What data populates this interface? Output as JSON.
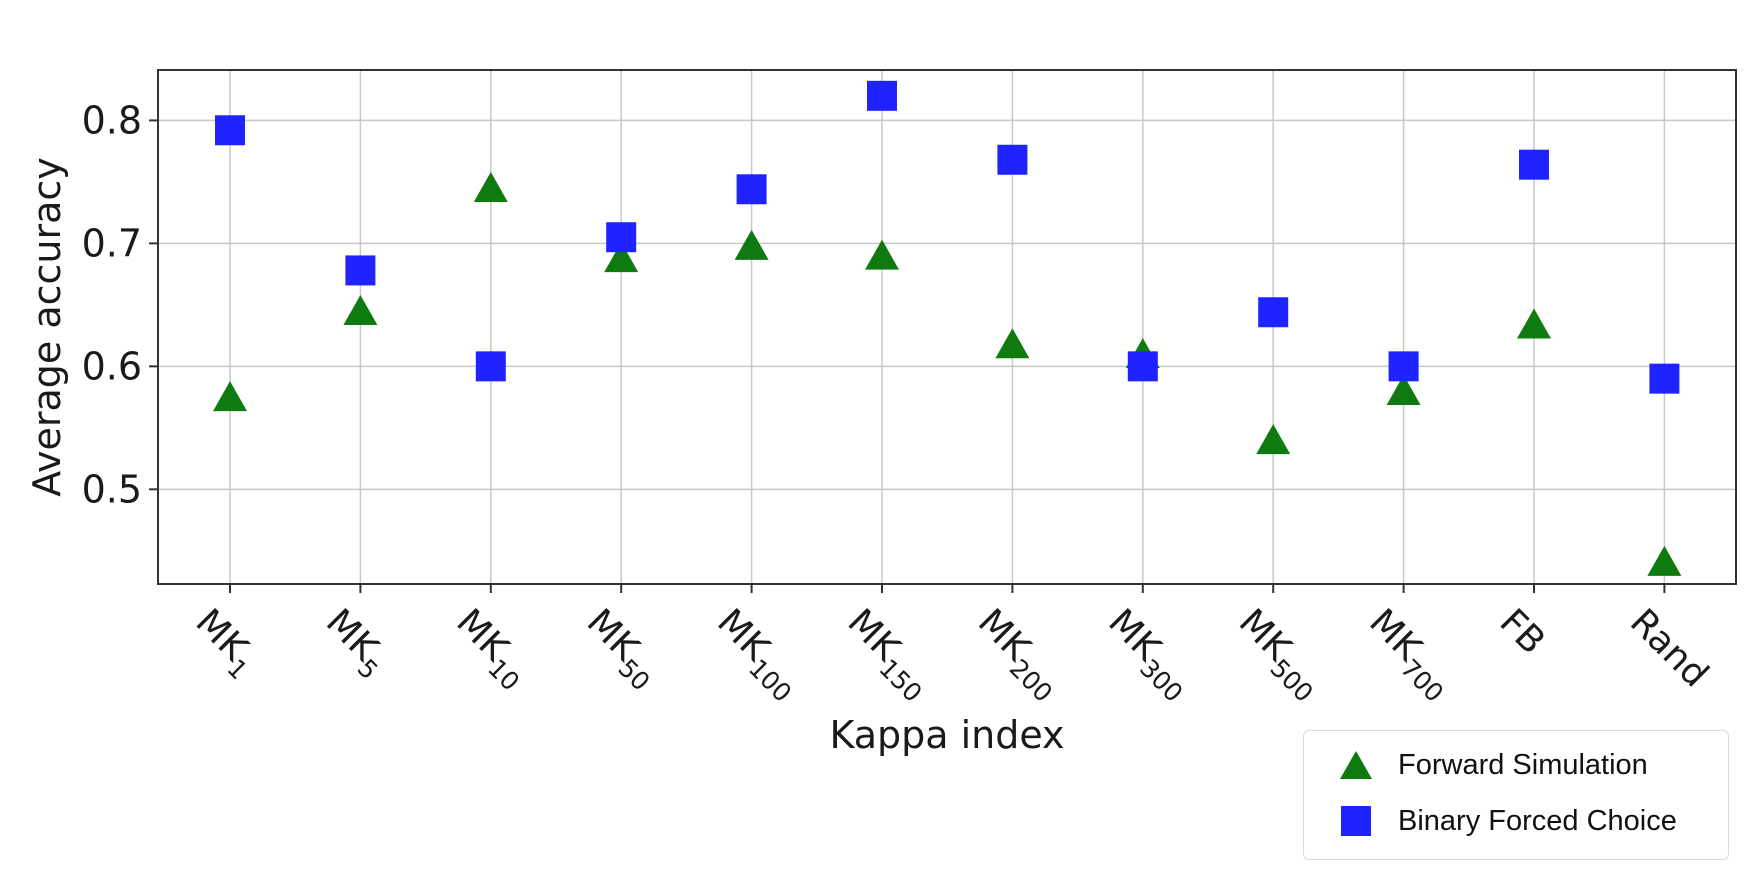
{
  "chart_data": {
    "type": "scatter",
    "xlabel": "Kappa index",
    "ylabel": "Average accuracy",
    "categories": [
      {
        "base": "MK",
        "sub": "1"
      },
      {
        "base": "MK",
        "sub": "5"
      },
      {
        "base": "MK",
        "sub": "10"
      },
      {
        "base": "MK",
        "sub": "50"
      },
      {
        "base": "MK",
        "sub": "100"
      },
      {
        "base": "MK",
        "sub": "150"
      },
      {
        "base": "MK",
        "sub": "200"
      },
      {
        "base": "MK",
        "sub": "300"
      },
      {
        "base": "MK",
        "sub": "500"
      },
      {
        "base": "MK",
        "sub": "700"
      },
      {
        "base": "FB",
        "sub": ""
      },
      {
        "base": "Rand",
        "sub": ""
      }
    ],
    "yticks": [
      0.5,
      0.6,
      0.7,
      0.8
    ],
    "ytick_labels": [
      "0.5",
      "0.6",
      "0.7",
      "0.8"
    ],
    "ylim": [
      0.423,
      0.841
    ],
    "grid": true,
    "legend_position": "bottom-right, outside plot",
    "series": [
      {
        "name": "Forward Simulation",
        "marker": "triangle",
        "color": "#0f7a0f",
        "values": [
          0.575,
          0.645,
          0.745,
          0.688,
          0.698,
          0.69,
          0.618,
          0.61,
          0.54,
          0.58,
          0.634,
          0.441
        ]
      },
      {
        "name": "Binary Forced Choice",
        "marker": "square",
        "color": "#1f23ff",
        "values": [
          0.792,
          0.678,
          0.6,
          0.705,
          0.744,
          0.82,
          0.768,
          0.6,
          0.644,
          0.6,
          0.764,
          0.59
        ]
      }
    ]
  }
}
